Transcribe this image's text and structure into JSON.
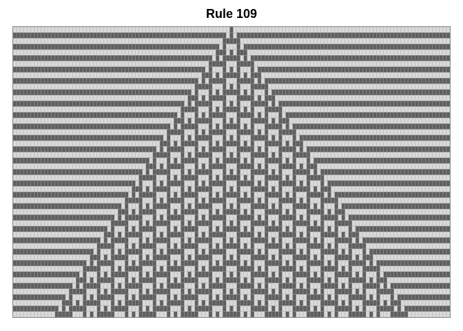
{
  "title": "Rule 109",
  "automaton": {
    "rule": 109,
    "generations": 51,
    "cells_per_row": 125,
    "initial_state": "single-center-cell",
    "boundary": "periodic"
  },
  "colors": {
    "on": "#5f5f5f",
    "off": "#d9d9d9",
    "cell_border": "#a8a8a8",
    "frame": "#8a8a8a",
    "background": "#ffffff",
    "title": "#000000"
  }
}
